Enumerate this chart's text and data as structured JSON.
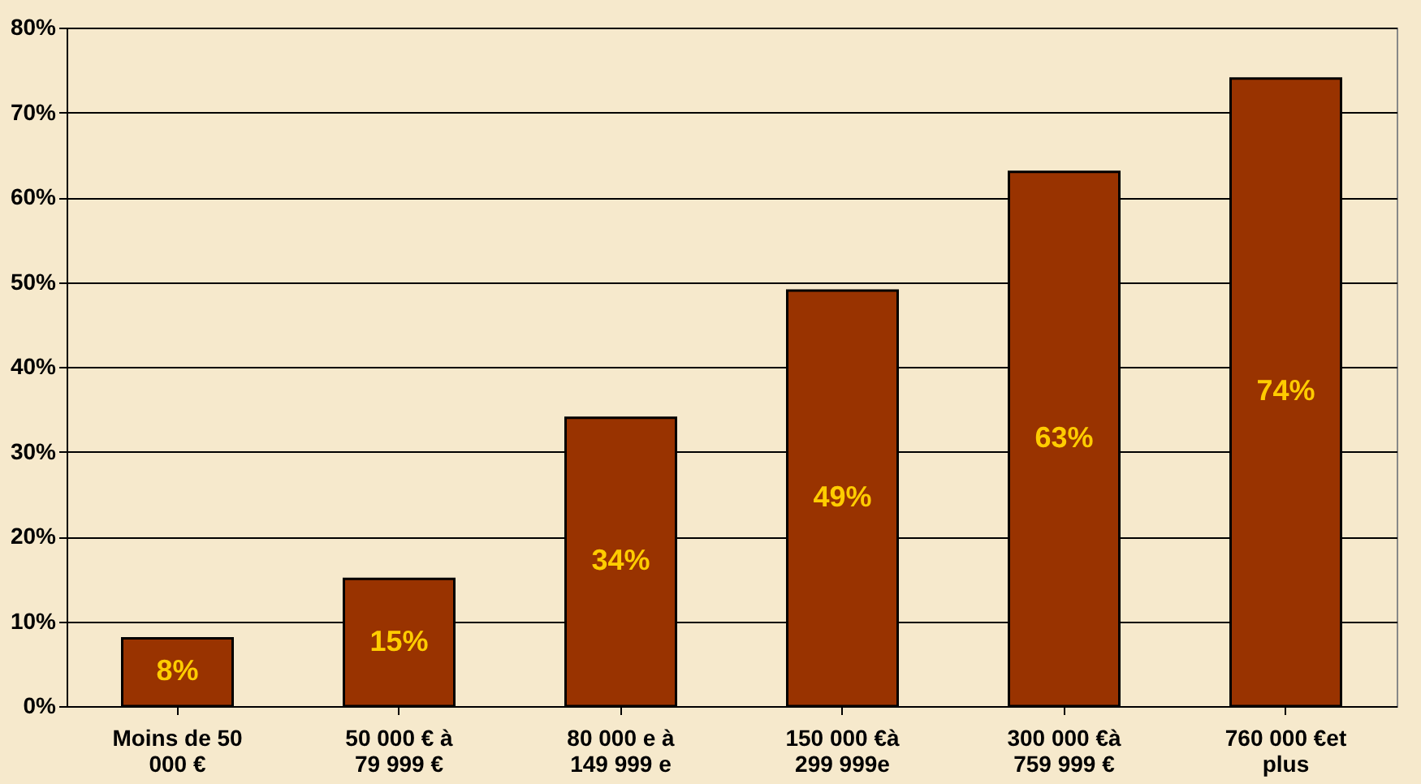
{
  "chart_data": {
    "type": "bar",
    "categories": [
      "Moins de 50 000 €",
      "50 000 € à 79 999 €",
      "80 000 e à 149 999 e",
      "150 000 €à 299 999e",
      "300 000 €à 759 999 €",
      "760 000 €et plus"
    ],
    "values": [
      8,
      15,
      34,
      49,
      63,
      74
    ],
    "value_labels": [
      "8%",
      "15%",
      "34%",
      "49%",
      "63%",
      "74%"
    ],
    "color": "#993300",
    "ylim": [
      0,
      80
    ],
    "yticks": [
      {
        "value": 0,
        "label": "0%"
      },
      {
        "value": 10,
        "label": "10%"
      },
      {
        "value": 20,
        "label": "20%"
      },
      {
        "value": 30,
        "label": "30%"
      },
      {
        "value": 40,
        "label": "40%"
      },
      {
        "value": 50,
        "label": "50%"
      },
      {
        "value": 60,
        "label": "60%"
      },
      {
        "value": 70,
        "label": "70%"
      },
      {
        "value": 80,
        "label": "80%"
      }
    ],
    "grid": "y"
  }
}
